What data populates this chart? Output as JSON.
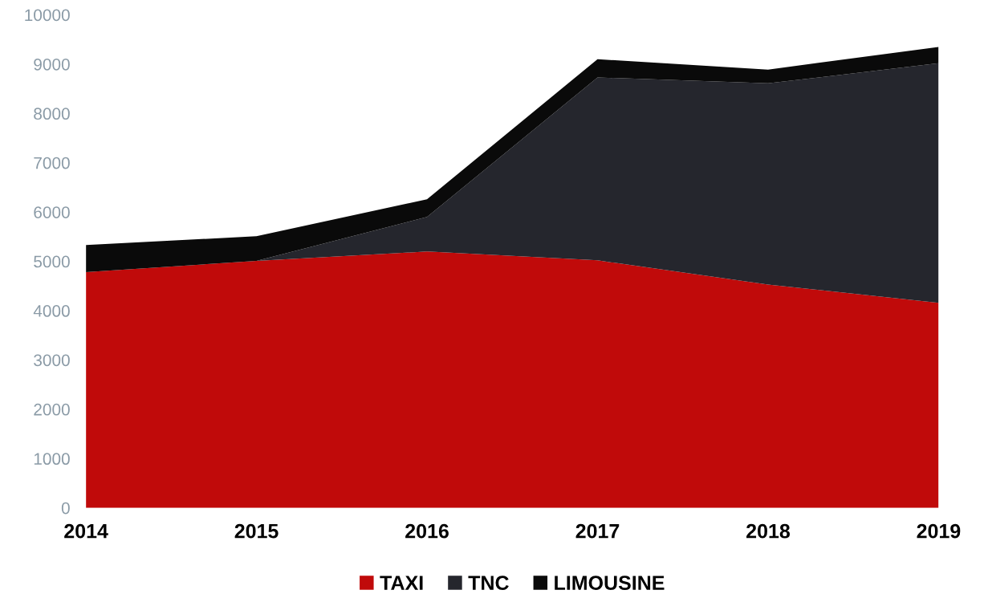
{
  "chart_data": {
    "type": "area",
    "stacked": true,
    "categories": [
      "2014",
      "2015",
      "2016",
      "2017",
      "2018",
      "2019"
    ],
    "series": [
      {
        "name": "TAXI",
        "color": "#c00a0a",
        "values": [
          4780,
          5010,
          5200,
          5020,
          4530,
          4160
        ]
      },
      {
        "name": "TNC",
        "color": "#25262d",
        "values": [
          0,
          0,
          700,
          3710,
          4080,
          4860
        ]
      },
      {
        "name": "LIMOUSINE",
        "color": "#0a0a0a",
        "values": [
          550,
          500,
          360,
          370,
          280,
          330
        ]
      }
    ],
    "ylim": [
      0,
      10000
    ],
    "yticks": [
      0,
      1000,
      2000,
      3000,
      4000,
      5000,
      6000,
      7000,
      8000,
      9000,
      10000
    ],
    "grid": false,
    "legend": "bottom"
  }
}
